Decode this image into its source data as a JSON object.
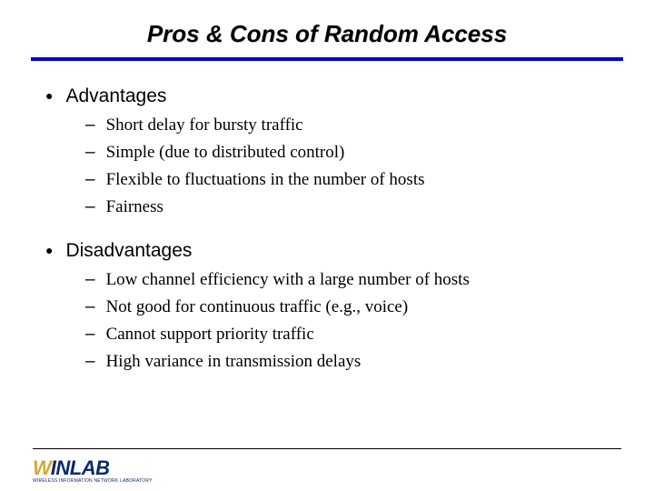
{
  "title": "Pros & Cons of Random Access",
  "title_fontsize": 26,
  "title_color": "#000000",
  "underline_color": "#0000cc",
  "background_color": "#ffffff",
  "bullets": [
    {
      "label": "Advantages",
      "subitems": [
        "Short delay for bursty traffic",
        "Simple (due to distributed control)",
        "Flexible to fluctuations in the number of hosts",
        "Fairness"
      ]
    },
    {
      "label": "Disadvantages",
      "subitems": [
        "Low channel efficiency with a large number of hosts",
        "Not good for continuous traffic (e.g., voice)",
        "Cannot support priority traffic",
        "High variance in transmission delays"
      ]
    }
  ],
  "bullet_fontsize": 21,
  "sub_fontsize": 19,
  "sub_font_family": "Times New Roman",
  "logo": {
    "w_text": "W",
    "rest_text": "INLAB",
    "w_color": "#d4a73a",
    "rest_color": "#0a2a6b",
    "subtext": "WIRELESS INFORMATION NETWORK LABORATORY"
  }
}
